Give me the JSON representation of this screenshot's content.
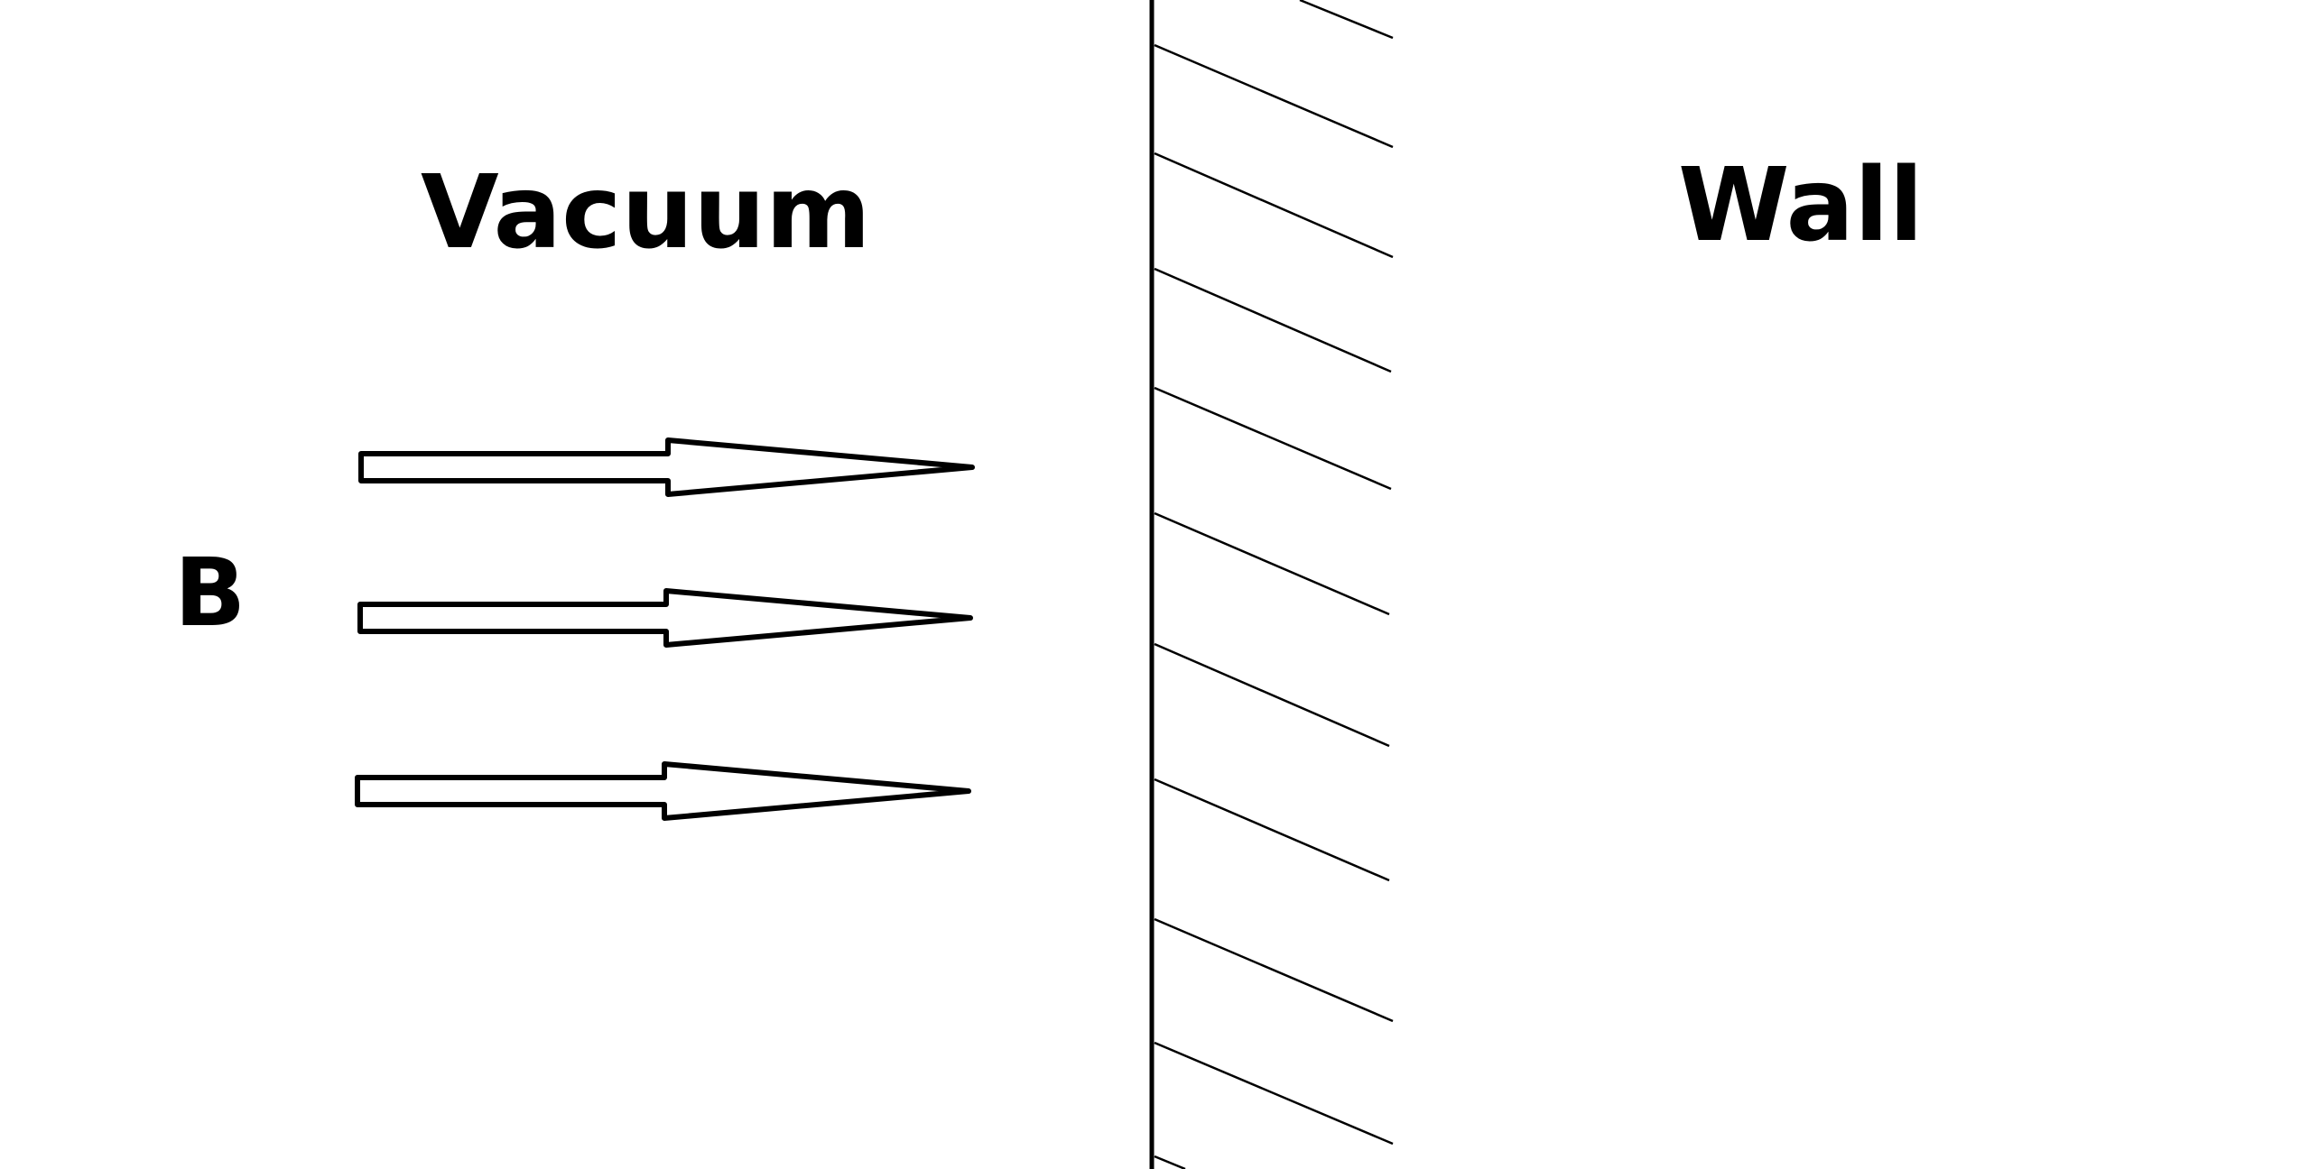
{
  "labels": {
    "vacuum": "Vacuum",
    "wall": "Wall",
    "field": "B"
  },
  "colors": {
    "stroke": "#000000",
    "background": "#ffffff"
  },
  "arrows": {
    "count": 3,
    "style": "hollow-open-arrow",
    "direction": "right"
  },
  "wall": {
    "hatch_lines": 11
  }
}
